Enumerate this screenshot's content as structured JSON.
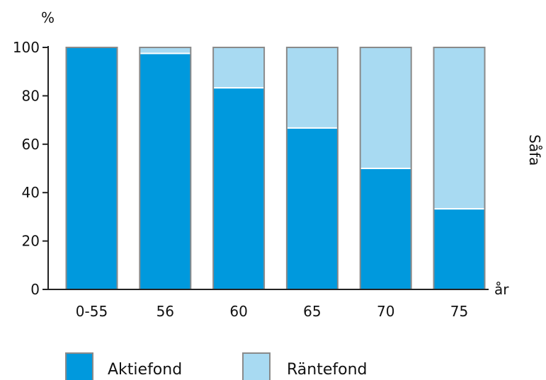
{
  "chart_data": {
    "type": "bar",
    "stacked": true,
    "y_unit_label": "%",
    "x_unit_label": "år",
    "side_label": "Såfa",
    "categories": [
      "0-55",
      "56",
      "60",
      "65",
      "70",
      "75"
    ],
    "series": [
      {
        "name": "Aktiefond",
        "color": "#0099dd",
        "values": [
          100,
          97.5,
          83.3,
          66.7,
          50,
          33.3
        ]
      },
      {
        "name": "Räntefond",
        "color": "#a8daf2",
        "values": [
          0,
          2.5,
          16.7,
          33.3,
          50,
          66.7
        ]
      }
    ],
    "ylim": [
      0,
      100
    ],
    "yticks": [
      0,
      20,
      40,
      60,
      80,
      100
    ],
    "grid": false,
    "legend_position": "bottom"
  }
}
